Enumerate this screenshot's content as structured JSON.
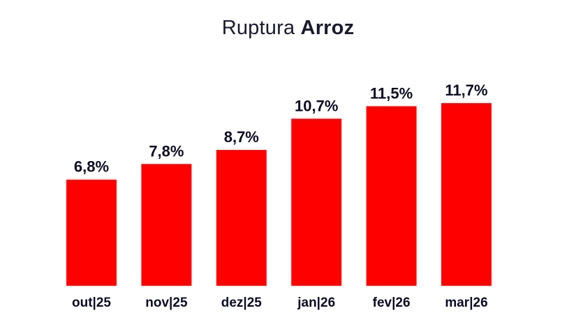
{
  "title": {
    "prefix": "Ruptura",
    "emphasis": "Arroz"
  },
  "colors": {
    "bar": "#ff0000",
    "text": "#0b0b23"
  },
  "chart_data": {
    "type": "bar",
    "title": "Ruptura Arroz",
    "categories": [
      "out|25",
      "nov|25",
      "dez|25",
      "jan|26",
      "fev|26",
      "mar|26"
    ],
    "values": [
      6.8,
      7.8,
      8.7,
      10.7,
      11.5,
      11.7
    ],
    "data_labels": [
      "6,8%",
      "7,8%",
      "8,7%",
      "10,7%",
      "11,5%",
      "11,7%"
    ],
    "unit": "%",
    "grid": false,
    "legend": "none",
    "xlabel": "",
    "ylabel": ""
  }
}
